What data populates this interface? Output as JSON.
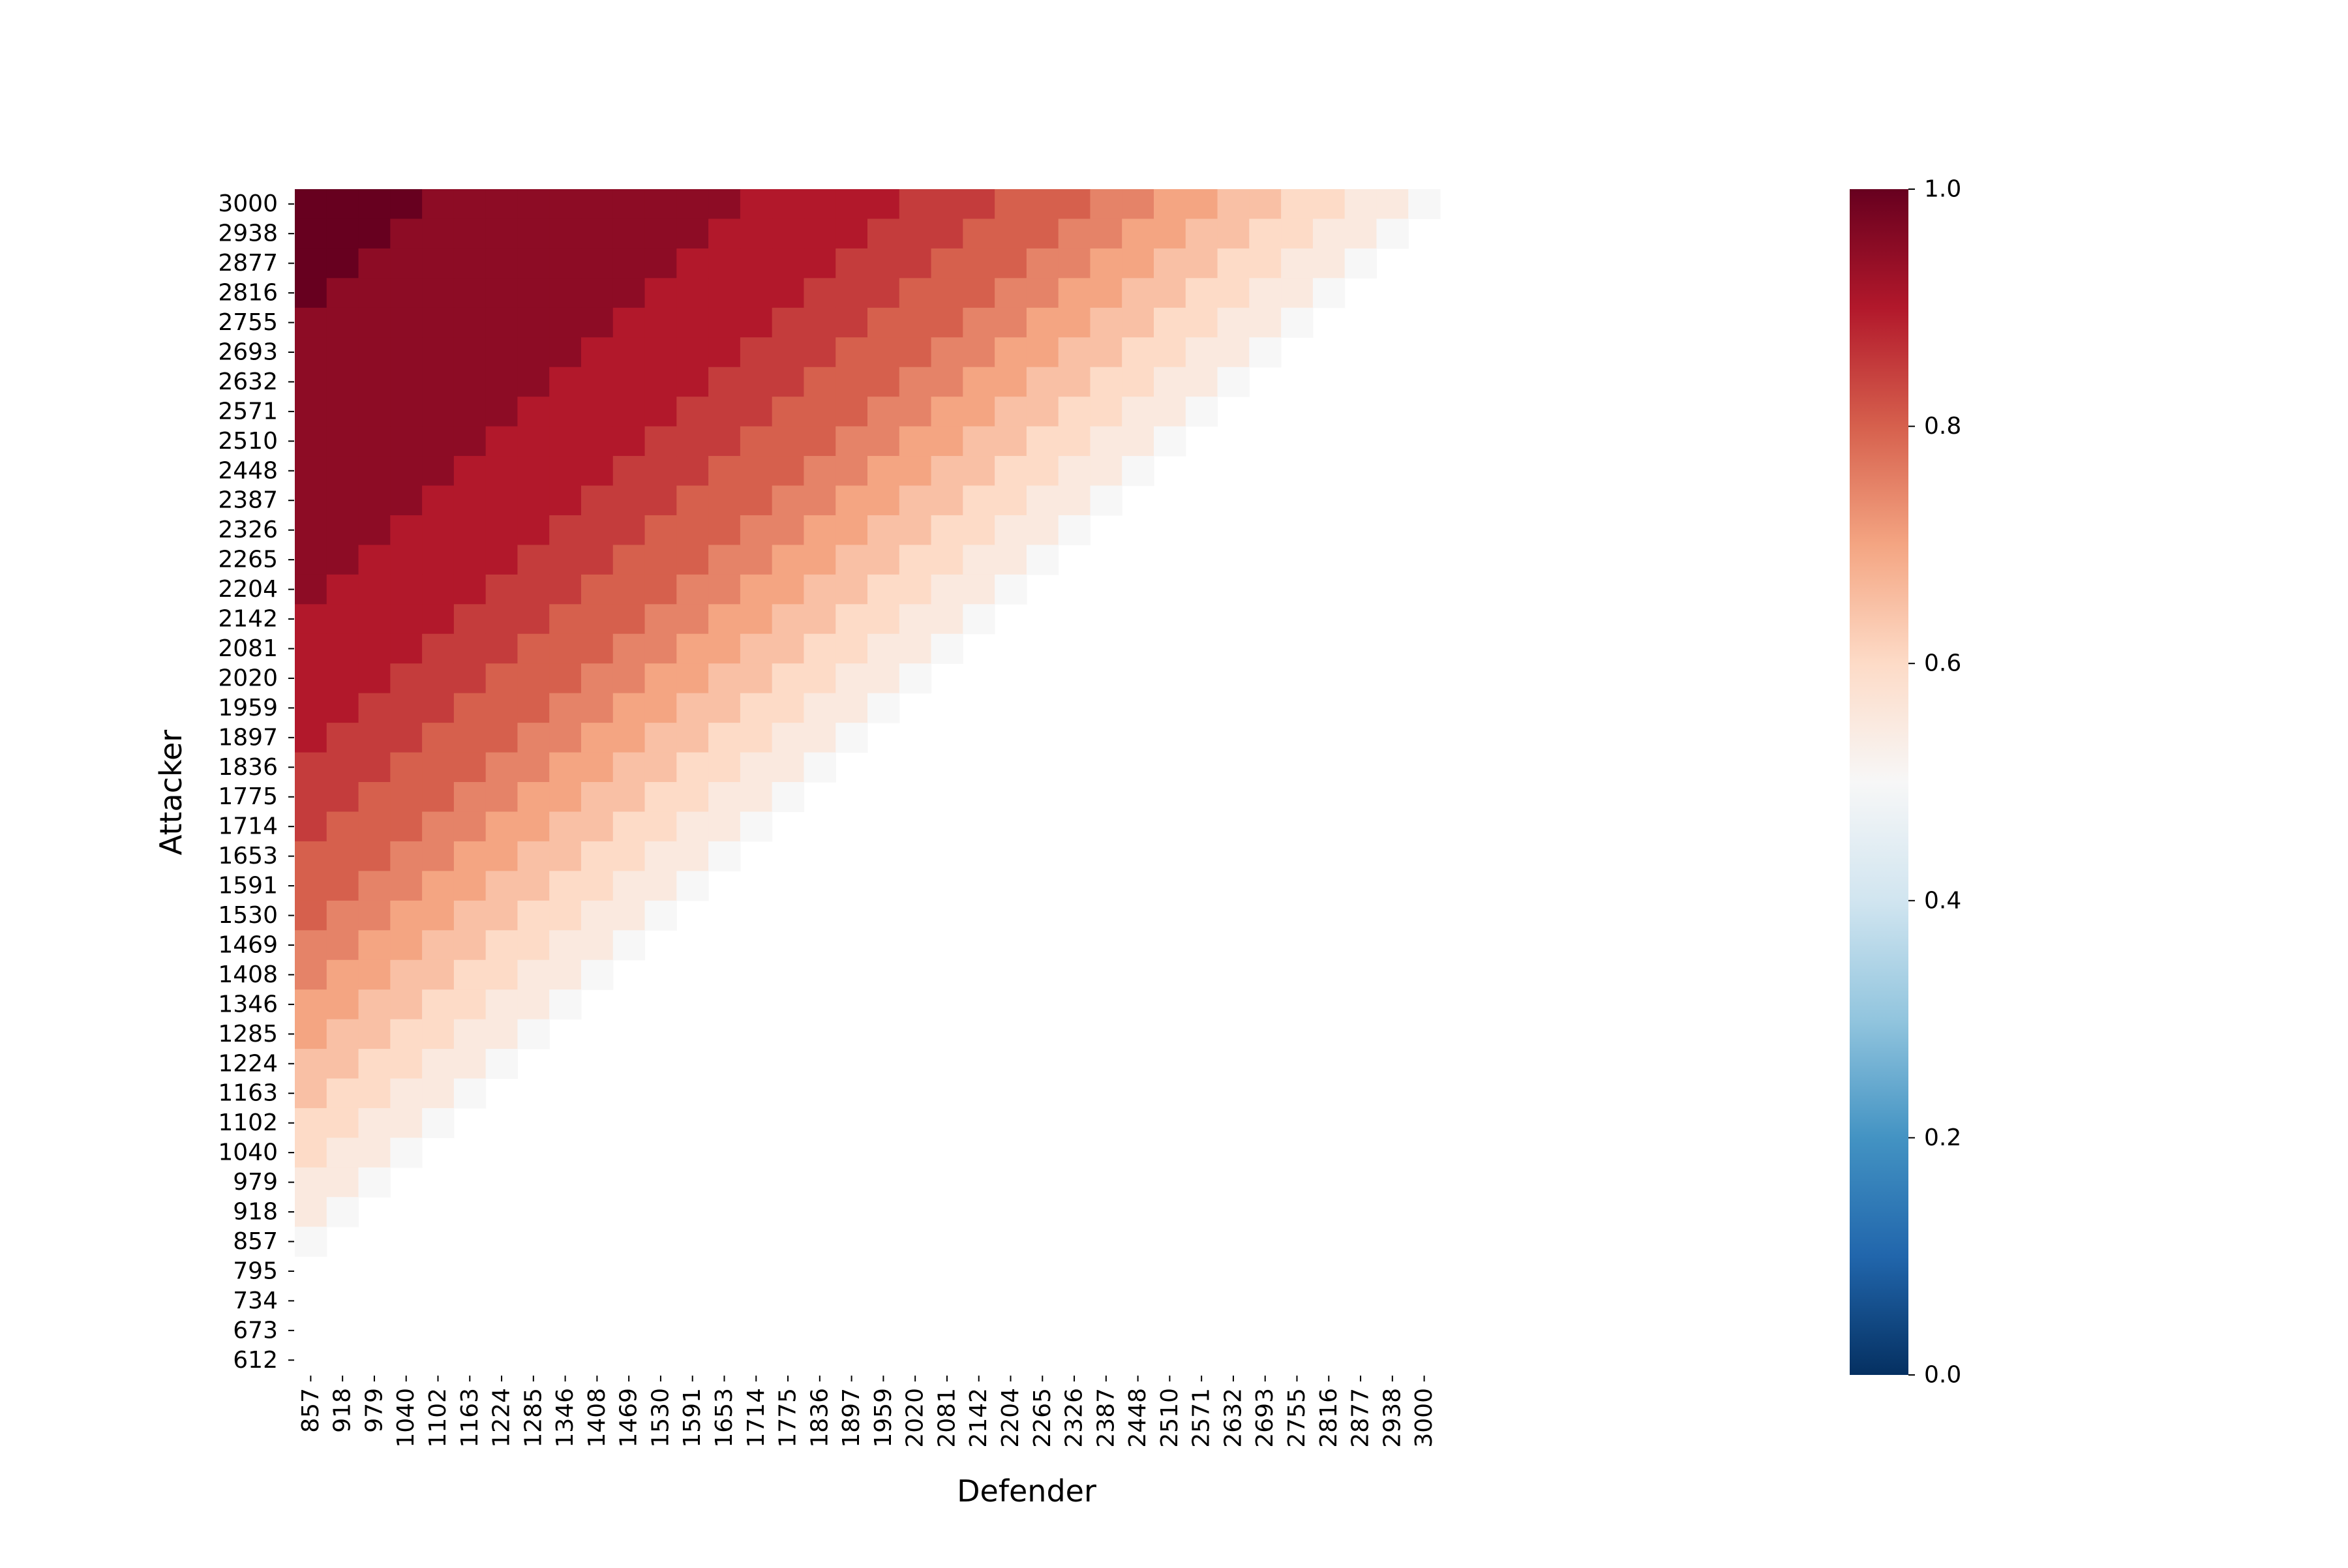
{
  "chart_data": {
    "type": "heatmap",
    "title": "",
    "xlabel": "Defender",
    "ylabel": "Attacker",
    "x": [
      857,
      918,
      979,
      1040,
      1102,
      1163,
      1224,
      1285,
      1346,
      1408,
      1469,
      1530,
      1591,
      1653,
      1714,
      1775,
      1836,
      1897,
      1959,
      2020,
      2081,
      2142,
      2204,
      2265,
      2326,
      2387,
      2448,
      2510,
      2571,
      2632,
      2693,
      2755,
      2816,
      2877,
      2938,
      3000
    ],
    "y": [
      3000,
      2938,
      2877,
      2816,
      2755,
      2693,
      2632,
      2571,
      2510,
      2448,
      2387,
      2326,
      2265,
      2204,
      2142,
      2081,
      2020,
      1959,
      1897,
      1836,
      1775,
      1714,
      1653,
      1591,
      1530,
      1469,
      1408,
      1346,
      1285,
      1224,
      1163,
      1102,
      1040,
      979,
      918,
      857,
      795,
      734,
      673,
      612
    ],
    "value_model": "probability that Attacker beats Defender: 1 / (1 + 10^((Defender - Attacker) / 1200)), shown in steps of 0.05; cells where Attacker < Defender are blank",
    "colorbar": {
      "colormap": "RdBu_r",
      "range": [
        0.0,
        1.0
      ],
      "ticks": [
        "0.0",
        "0.2",
        "0.4",
        "0.6",
        "0.8",
        "1.0"
      ]
    },
    "grid": false,
    "legend": "colorbar at right"
  }
}
